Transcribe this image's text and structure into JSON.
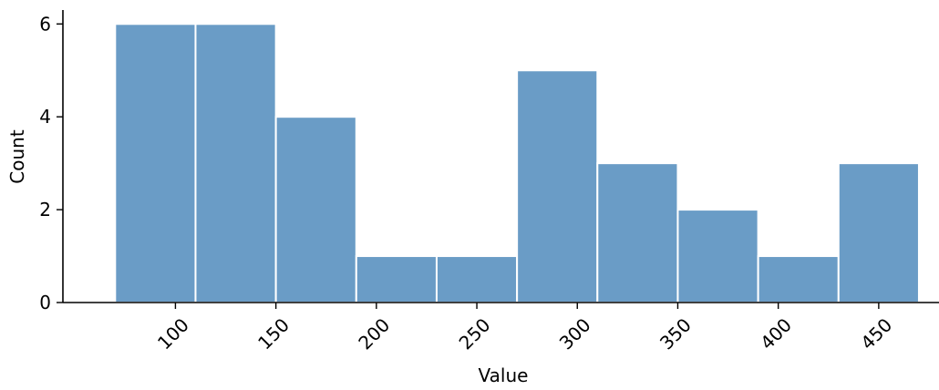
{
  "chart_data": {
    "type": "bar",
    "subtype": "histogram",
    "title": "",
    "xlabel": "Value",
    "ylabel": "Count",
    "bins": [
      {
        "start": 70,
        "end": 110,
        "count": 6
      },
      {
        "start": 110,
        "end": 150,
        "count": 6
      },
      {
        "start": 150,
        "end": 190,
        "count": 4
      },
      {
        "start": 190,
        "end": 230,
        "count": 1
      },
      {
        "start": 230,
        "end": 270,
        "count": 1
      },
      {
        "start": 270,
        "end": 310,
        "count": 5
      },
      {
        "start": 310,
        "end": 350,
        "count": 3
      },
      {
        "start": 350,
        "end": 390,
        "count": 2
      },
      {
        "start": 390,
        "end": 430,
        "count": 1
      },
      {
        "start": 430,
        "end": 470,
        "count": 3
      }
    ],
    "xlim": [
      44,
      480
    ],
    "ylim": [
      0,
      6.3
    ],
    "xticks": [
      100,
      150,
      200,
      250,
      300,
      350,
      400,
      450
    ],
    "yticks": [
      0,
      2,
      4,
      6
    ],
    "x_tick_rotation": 45,
    "bar_color": "#6a9cc6",
    "bar_edge_color": "#ffffff",
    "axis_color": "#000000",
    "grid": false,
    "legend": false
  }
}
